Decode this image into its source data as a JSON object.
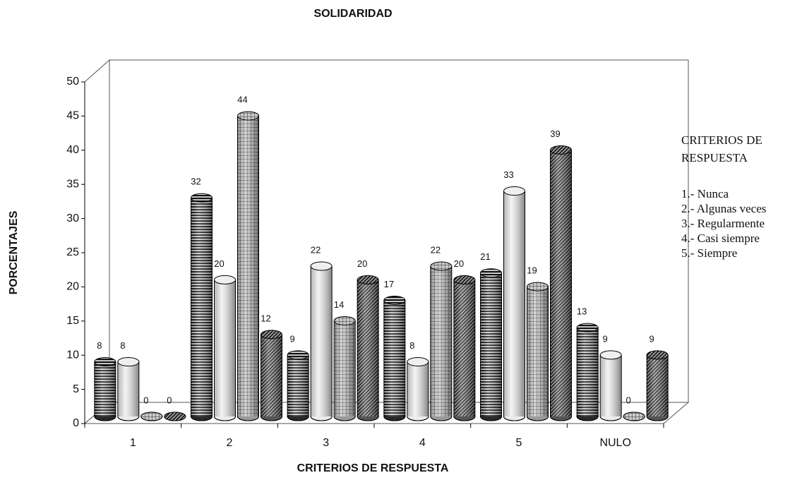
{
  "chart_data": {
    "type": "bar3d",
    "title": "SOLIDARIDAD",
    "x_label": "CRITERIOS DE RESPUESTA",
    "y_label": "PORCENTAJES",
    "categories": [
      "1",
      "2",
      "3",
      "4",
      "5",
      "NULO"
    ],
    "series": [
      {
        "color": "#2a2a2a",
        "pattern": "horizontal",
        "values": [
          8,
          32,
          9,
          17,
          21,
          13
        ]
      },
      {
        "color": "#ececec",
        "pattern": "none",
        "values": [
          8,
          20,
          22,
          8,
          33,
          9
        ]
      },
      {
        "color": "#9a9a9a",
        "pattern": "grid",
        "values": [
          0,
          44,
          14,
          22,
          19,
          0
        ]
      },
      {
        "color": "#555555",
        "pattern": "diagonal",
        "values": [
          0,
          12,
          20,
          20,
          39,
          9
        ]
      }
    ],
    "ylim": [
      0,
      50
    ],
    "yticks": [
      0,
      5,
      10,
      15,
      20,
      25,
      30,
      35,
      40,
      45,
      50
    ],
    "legend_box": {
      "title_lines": [
        "CRITERIOS DE",
        "RESPUESTA"
      ],
      "items": [
        "1.- Nunca",
        "2.- Algunas veces",
        "3.- Regularmente",
        "4.- Casi siempre",
        "5.- Siempre"
      ]
    }
  }
}
